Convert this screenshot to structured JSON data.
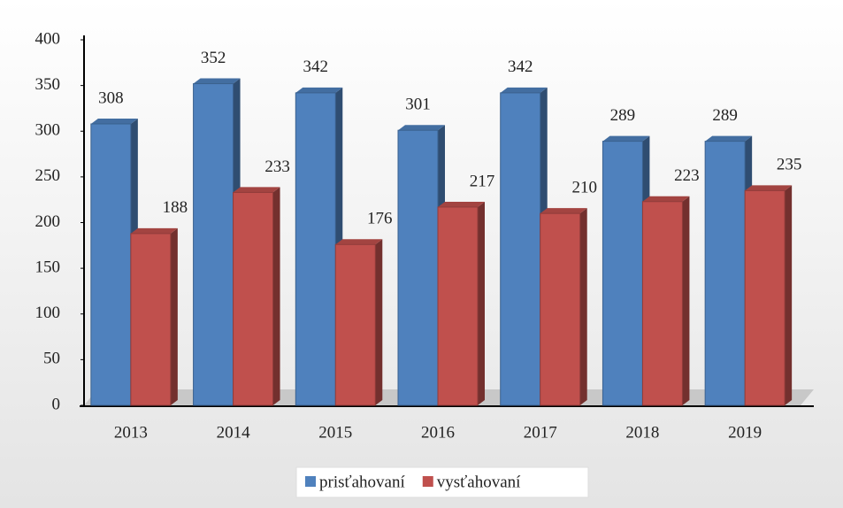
{
  "chart_data": {
    "type": "bar",
    "categories": [
      "2013",
      "2014",
      "2015",
      "2016",
      "2017",
      "2018",
      "2019"
    ],
    "series": [
      {
        "name": "prisťahovaní",
        "color": "#4f81bd",
        "values": [
          308,
          352,
          342,
          301,
          342,
          289,
          289
        ]
      },
      {
        "name": "vysťahovaní",
        "color": "#c0504d",
        "values": [
          188,
          233,
          176,
          217,
          210,
          223,
          235
        ]
      }
    ],
    "ylim": [
      0,
      400
    ],
    "yticks": [
      0,
      50,
      100,
      150,
      200,
      250,
      300,
      350,
      400
    ],
    "legend": "bottom"
  }
}
